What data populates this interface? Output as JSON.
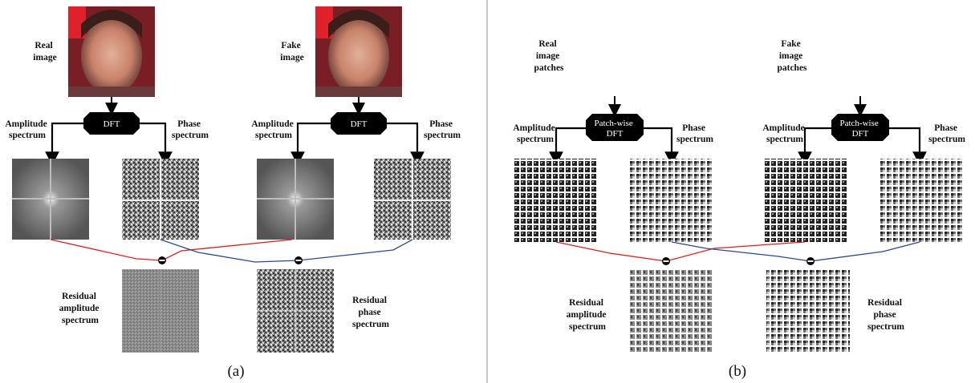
{
  "panel_a": {
    "caption": "(a)",
    "real_label": [
      "Real",
      "image"
    ],
    "fake_label": [
      "Fake",
      "image"
    ],
    "dft_real": "DFT",
    "dft_fake": "DFT",
    "amp_real": [
      "Amplitude",
      "spectrum"
    ],
    "phase_real": [
      "Phase",
      "spectrum"
    ],
    "amp_fake": [
      "Amplitude",
      "spectrum"
    ],
    "phase_fake": [
      "Phase",
      "spectrum"
    ],
    "residual_amp": [
      "Residual",
      "amplitude",
      "spectrum"
    ],
    "residual_phase": [
      "Residual",
      "phase",
      "spectrum"
    ]
  },
  "panel_b": {
    "caption": "(b)",
    "real_label": [
      "Real",
      "image",
      "patches"
    ],
    "fake_label": [
      "Fake",
      "image",
      "patches"
    ],
    "dft_real": [
      "Patch-wise",
      "DFT"
    ],
    "dft_fake": [
      "Patch-wise",
      "DFT"
    ],
    "amp_real": [
      "Amplitude",
      "spectrum"
    ],
    "phase_real": [
      "Phase",
      "spectrum"
    ],
    "amp_fake": [
      "Amplitude",
      "spectrum"
    ],
    "phase_fake": [
      "Phase",
      "spectrum"
    ],
    "residual_amp": [
      "Residual",
      "amplitude",
      "spectrum"
    ],
    "residual_phase": [
      "Residual",
      "phase",
      "spectrum"
    ]
  },
  "colors": {
    "real_path": "#dd1f1f",
    "fake_path": "#2b4a8c",
    "box": "#000000",
    "divider": "#c8c8c8"
  },
  "icons": {
    "subtract": "minus-circle-icon"
  }
}
